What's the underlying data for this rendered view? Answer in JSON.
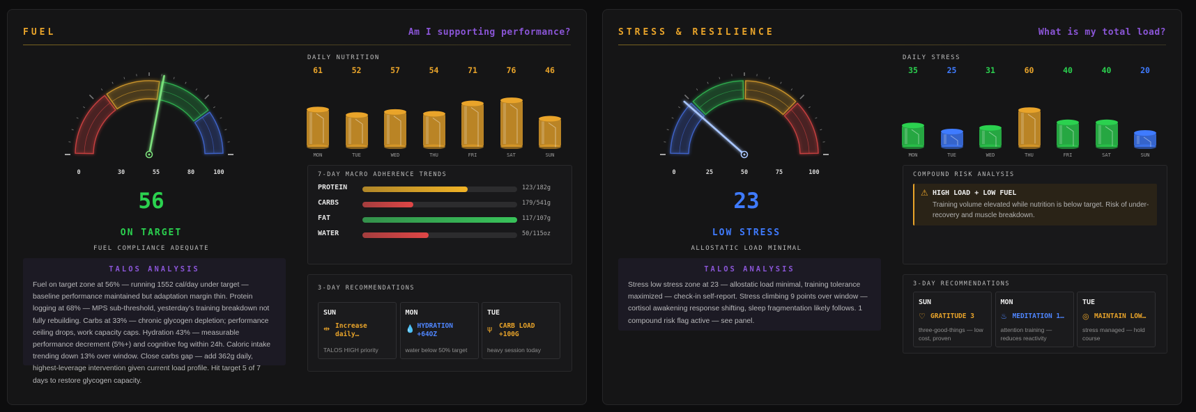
{
  "fuel": {
    "title": "FUEL",
    "question": "Am I supporting performance?",
    "gauge": {
      "value": 56,
      "value_label": "56",
      "tick_labels": [
        "0",
        "30",
        "55",
        "80",
        "100"
      ],
      "status": "ON TARGET",
      "subtitle": "FUEL COMPLIANCE ADEQUATE",
      "colors": {
        "low": "#c84040",
        "mid": "#c9932a",
        "target": "#2fae4f",
        "high": "#3f63c9",
        "needle": "#7de07d",
        "value": "#2bd14f"
      }
    },
    "talos": {
      "heading": "TALOS ANALYSIS",
      "text": "Fuel on target zone at 56% — running 1552 cal/day under target — baseline performance maintained but adaptation margin thin. Protein logging at 68% — MPS sub-threshold, yesterday's training breakdown not fully rebuilding. Carbs at 33% — chronic glycogen depletion; performance ceiling drops, work capacity caps. Hydration 43% — measurable performance decrement (5%+) and cognitive fog within 24h. Caloric intake trending down 13% over window. Close carbs gap — add 362g daily, highest-leverage intervention given current load profile. Hit target 5 of 7 days to restore glycogen capacity."
    },
    "daily": {
      "title": "DAILY NUTRITION",
      "days": [
        {
          "day": "MON",
          "value": "61",
          "v": 61
        },
        {
          "day": "TUE",
          "value": "52",
          "v": 52
        },
        {
          "day": "WED",
          "value": "57",
          "v": 57
        },
        {
          "day": "THU",
          "value": "54",
          "v": 54
        },
        {
          "day": "FRI",
          "value": "71",
          "v": 71
        },
        {
          "day": "SAT",
          "value": "76",
          "v": 76
        },
        {
          "day": "SUN",
          "value": "46",
          "v": 46
        }
      ],
      "value_color": "#e9a42a"
    },
    "macros": {
      "title": "7-DAY MACRO ADHERENCE TRENDS",
      "rows": [
        {
          "name": "PROTEIN",
          "value": "123/182g",
          "fraction": 0.68,
          "color": "#f1b326"
        },
        {
          "name": "CARBS",
          "value": "179/541g",
          "fraction": 0.33,
          "color": "#e04646"
        },
        {
          "name": "FAT",
          "value": "117/107g",
          "fraction": 1.0,
          "color": "#38c35a"
        },
        {
          "name": "WATER",
          "value": "50/115oz",
          "fraction": 0.43,
          "color": "#e04646"
        }
      ]
    },
    "recs": {
      "title": "3-DAY RECOMMENDATIONS",
      "cards": [
        {
          "day": "SUN",
          "icon": "dumbbell-icon",
          "glyph": "⇹",
          "label": "Increase daily…",
          "note": "TALOS HIGH priority",
          "color": "#e9a42a"
        },
        {
          "day": "MON",
          "icon": "droplet-icon",
          "glyph": "💧",
          "label": "HYDRATION +64OZ",
          "note": "water below 50% target",
          "color": "#4f86ff"
        },
        {
          "day": "TUE",
          "icon": "wheat-icon",
          "glyph": "ψ",
          "label": "CARB LOAD +100G",
          "note": "heavy session today",
          "color": "#e9a42a"
        }
      ]
    }
  },
  "stress": {
    "title": "STRESS & RESILIENCE",
    "question": "What is my total load?",
    "gauge": {
      "value": 23,
      "value_label": "23",
      "tick_labels": [
        "0",
        "25",
        "50",
        "75",
        "100"
      ],
      "status": "LOW STRESS",
      "subtitle": "ALLOSTATIC LOAD MINIMAL",
      "colors": {
        "low": "#3f63c9",
        "mid": "#2fae4f",
        "target": "#c9932a",
        "high": "#c84040",
        "needle": "#a9c6ff",
        "value": "#3f7bff"
      }
    },
    "talos": {
      "heading": "TALOS ANALYSIS",
      "text": "Stress low stress zone at 23 — allostatic load minimal, training tolerance maximized — check-in self-report. Stress climbing 9 points over window — cortisol awakening response shifting, sleep fragmentation likely follows. 1 compound risk flag active — see panel."
    },
    "daily": {
      "title": "DAILY STRESS",
      "days": [
        {
          "day": "MON",
          "value": "35",
          "v": 35,
          "color": "#2bd14f"
        },
        {
          "day": "TUE",
          "value": "25",
          "v": 25,
          "color": "#3f7bff"
        },
        {
          "day": "WED",
          "value": "31",
          "v": 31,
          "color": "#2bd14f"
        },
        {
          "day": "THU",
          "value": "60",
          "v": 60,
          "color": "#e9a42a"
        },
        {
          "day": "FRI",
          "value": "40",
          "v": 40,
          "color": "#2bd14f"
        },
        {
          "day": "SAT",
          "value": "40",
          "v": 40,
          "color": "#2bd14f"
        },
        {
          "day": "SUN",
          "value": "20",
          "v": 20,
          "color": "#3f7bff"
        }
      ]
    },
    "risk": {
      "title": "COMPOUND RISK ANALYSIS",
      "alert_title": "HIGH LOAD + LOW FUEL",
      "alert_text": "Training volume elevated while nutrition is below target. Risk of under-recovery and muscle breakdown.",
      "icon": "warning-icon"
    },
    "recs": {
      "title": "3-DAY RECOMMENDATIONS",
      "cards": [
        {
          "day": "SUN",
          "icon": "heart-icon",
          "glyph": "♡",
          "label": "GRATITUDE 3",
          "note": "three-good-things — low cost, proven",
          "color": "#e9a42a"
        },
        {
          "day": "MON",
          "icon": "flame-icon",
          "glyph": "♨",
          "label": "MEDITATION 1…",
          "note": "attention training — reduces reactivity",
          "color": "#4f86ff"
        },
        {
          "day": "TUE",
          "icon": "target-icon",
          "glyph": "◎",
          "label": "MAINTAIN LOW…",
          "note": "stress managed — hold course",
          "color": "#e9a42a"
        }
      ]
    }
  }
}
